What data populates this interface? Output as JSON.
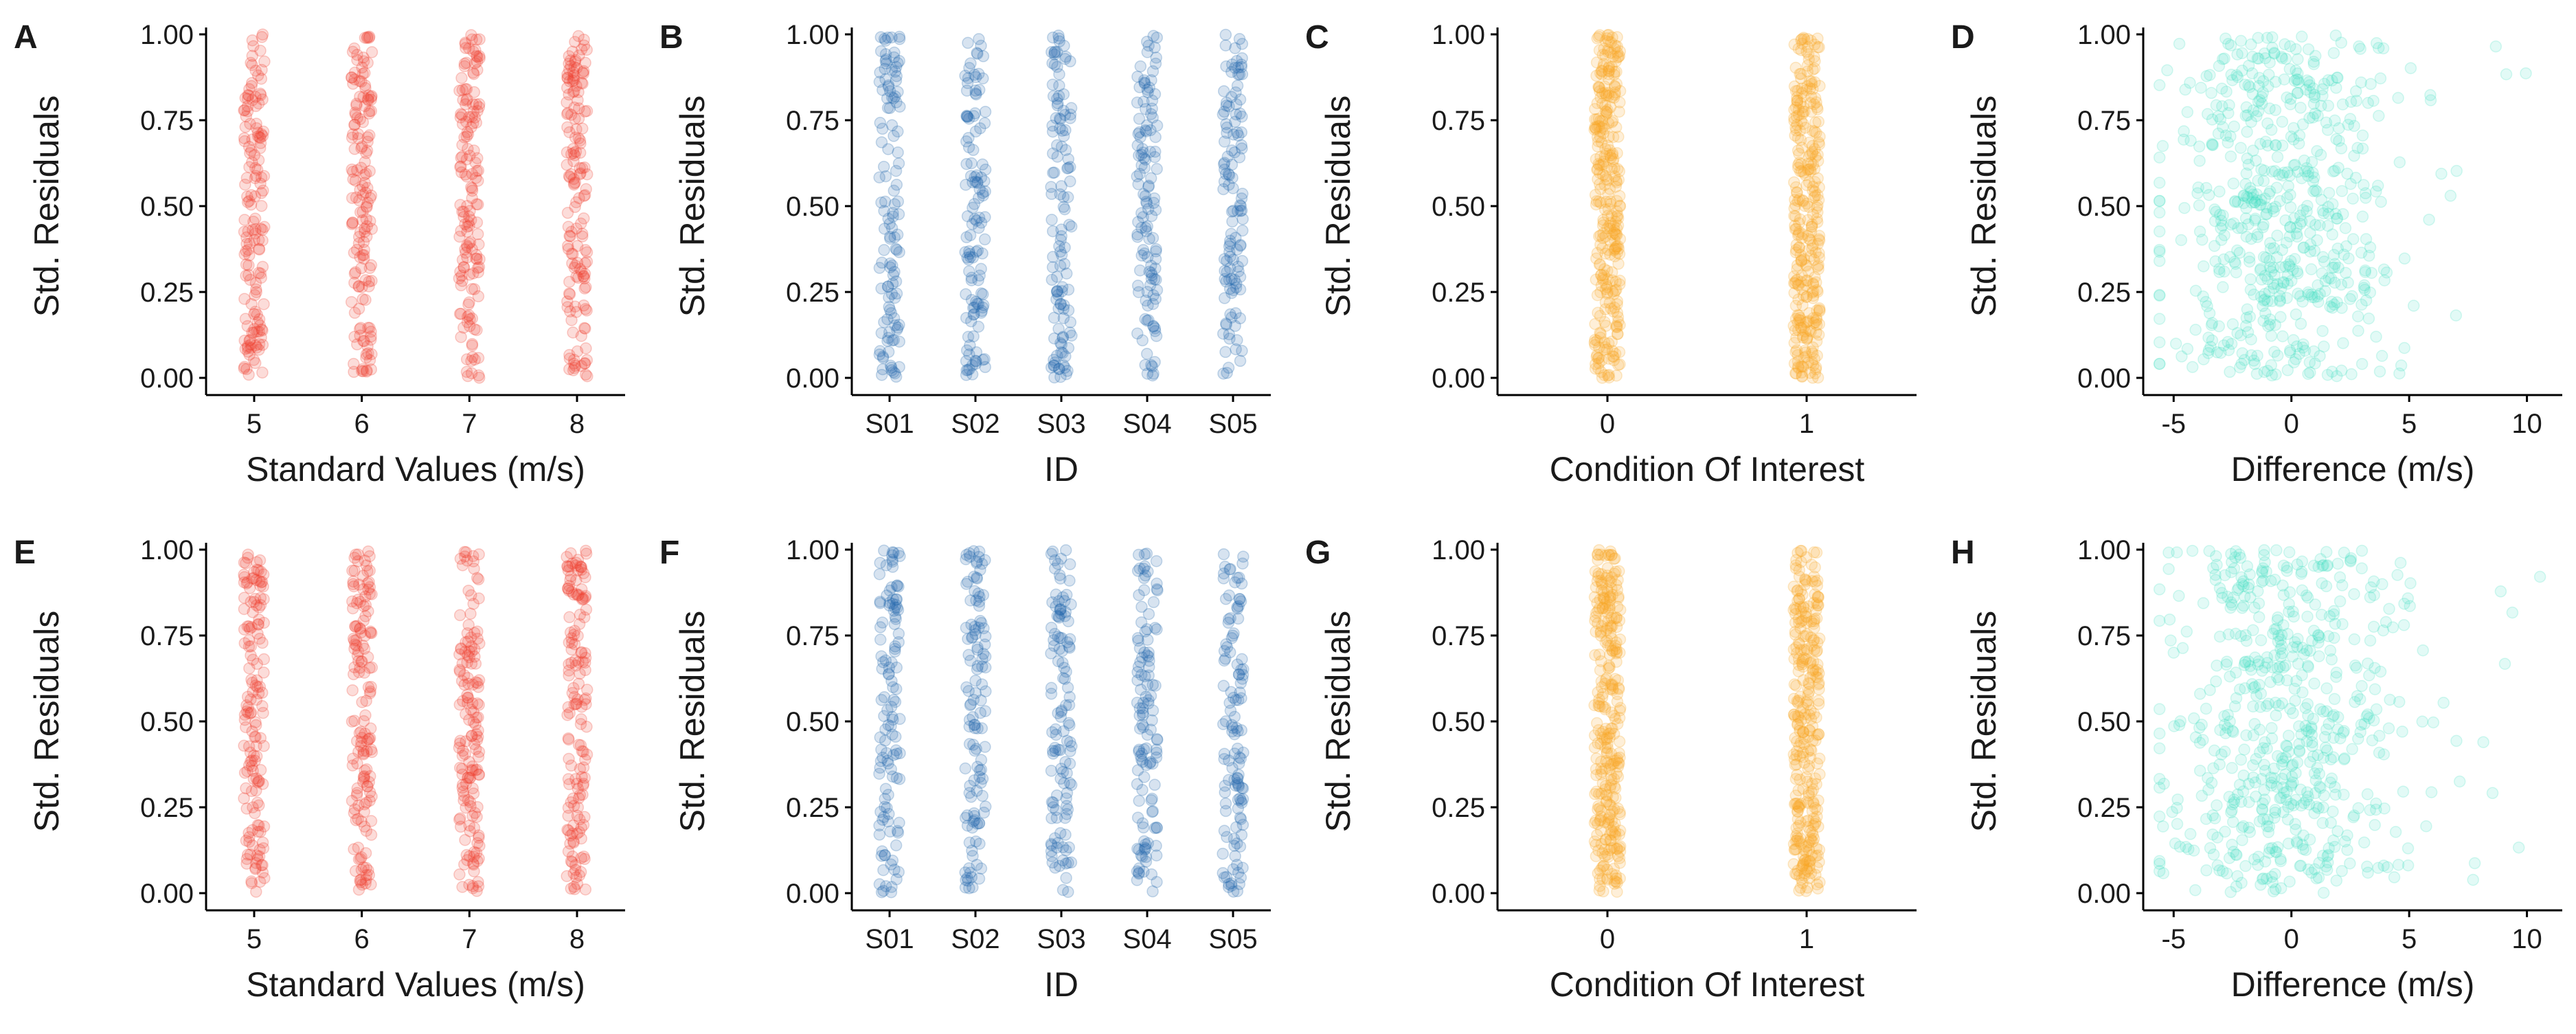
{
  "colors": {
    "speed": "#ef3b2c",
    "id": "#2166ac",
    "condition": "#f9a825",
    "difference": "#3fe0c0",
    "axis": "#000000",
    "text": "#1a1a1a"
  },
  "chart_data": [
    {
      "panel": "A",
      "type": "scatter",
      "jitter": "categorical",
      "xlabel": "Standard Values (m/s)",
      "ylabel": "Std. Residuals",
      "categories": [
        "5",
        "6",
        "7",
        "8"
      ],
      "ylim": [
        0,
        1
      ],
      "yticks": [
        "0.00",
        "0.25",
        "0.50",
        "0.75",
        "1.00"
      ],
      "color": "speed",
      "n_per_category": 150,
      "y_distribution": "uniform 0–1"
    },
    {
      "panel": "B",
      "type": "scatter",
      "jitter": "categorical",
      "xlabel": "ID",
      "ylabel": "Std. Residuals",
      "categories": [
        "S01",
        "S02",
        "S03",
        "S04",
        "S05"
      ],
      "ylim": [
        0,
        1
      ],
      "yticks": [
        "0.00",
        "0.25",
        "0.50",
        "0.75",
        "1.00"
      ],
      "color": "id",
      "n_per_category": 120,
      "y_distribution": "uniform 0–1"
    },
    {
      "panel": "C",
      "type": "scatter",
      "jitter": "categorical",
      "xlabel": "Condition Of Interest",
      "ylabel": "Std. Residuals",
      "categories": [
        "0",
        "1"
      ],
      "ylim": [
        0,
        1
      ],
      "yticks": [
        "0.00",
        "0.25",
        "0.50",
        "0.75",
        "1.00"
      ],
      "color": "condition",
      "n_per_category": 300,
      "y_distribution": "uniform 0–1"
    },
    {
      "panel": "D",
      "type": "scatter",
      "xlabel": "Difference (m/s)",
      "ylabel": "Std. Residuals",
      "xticks": [
        "-5",
        "0",
        "5",
        "10"
      ],
      "xlim": [
        -6,
        11.5
      ],
      "ylim": [
        0,
        1
      ],
      "yticks": [
        "0.00",
        "0.25",
        "0.50",
        "0.75",
        "1.00"
      ],
      "color": "difference",
      "n_points": 600,
      "x_center": -0.3,
      "x_spread": 2.2,
      "y_distribution": "uniform 0–1"
    },
    {
      "panel": "E",
      "type": "scatter",
      "jitter": "categorical",
      "xlabel": "Standard Values (m/s)",
      "ylabel": "Std. Residuals",
      "categories": [
        "5",
        "6",
        "7",
        "8"
      ],
      "ylim": [
        0,
        1
      ],
      "yticks": [
        "0.00",
        "0.25",
        "0.50",
        "0.75",
        "1.00"
      ],
      "color": "speed",
      "n_per_category": 150,
      "y_distribution": "uniform 0–1"
    },
    {
      "panel": "F",
      "type": "scatter",
      "jitter": "categorical",
      "xlabel": "ID",
      "ylabel": "Std. Residuals",
      "categories": [
        "S01",
        "S02",
        "S03",
        "S04",
        "S05"
      ],
      "ylim": [
        0,
        1
      ],
      "yticks": [
        "0.00",
        "0.25",
        "0.50",
        "0.75",
        "1.00"
      ],
      "color": "id",
      "n_per_category": 120,
      "y_distribution": "uniform 0–1"
    },
    {
      "panel": "G",
      "type": "scatter",
      "jitter": "categorical",
      "xlabel": "Condition Of Interest",
      "ylabel": "Std. Residuals",
      "categories": [
        "0",
        "1"
      ],
      "ylim": [
        0,
        1
      ],
      "yticks": [
        "0.00",
        "0.25",
        "0.50",
        "0.75",
        "1.00"
      ],
      "color": "condition",
      "n_per_category": 300,
      "y_distribution": "uniform 0–1"
    },
    {
      "panel": "H",
      "type": "scatter",
      "xlabel": "Difference (m/s)",
      "ylabel": "Std. Residuals",
      "xticks": [
        "-5",
        "0",
        "5",
        "10"
      ],
      "xlim": [
        -6,
        11.5
      ],
      "ylim": [
        0,
        1
      ],
      "yticks": [
        "0.00",
        "0.25",
        "0.50",
        "0.75",
        "1.00"
      ],
      "color": "difference",
      "n_points": 600,
      "x_center": -0.3,
      "x_spread": 2.2,
      "y_distribution": "uniform 0–1"
    }
  ]
}
